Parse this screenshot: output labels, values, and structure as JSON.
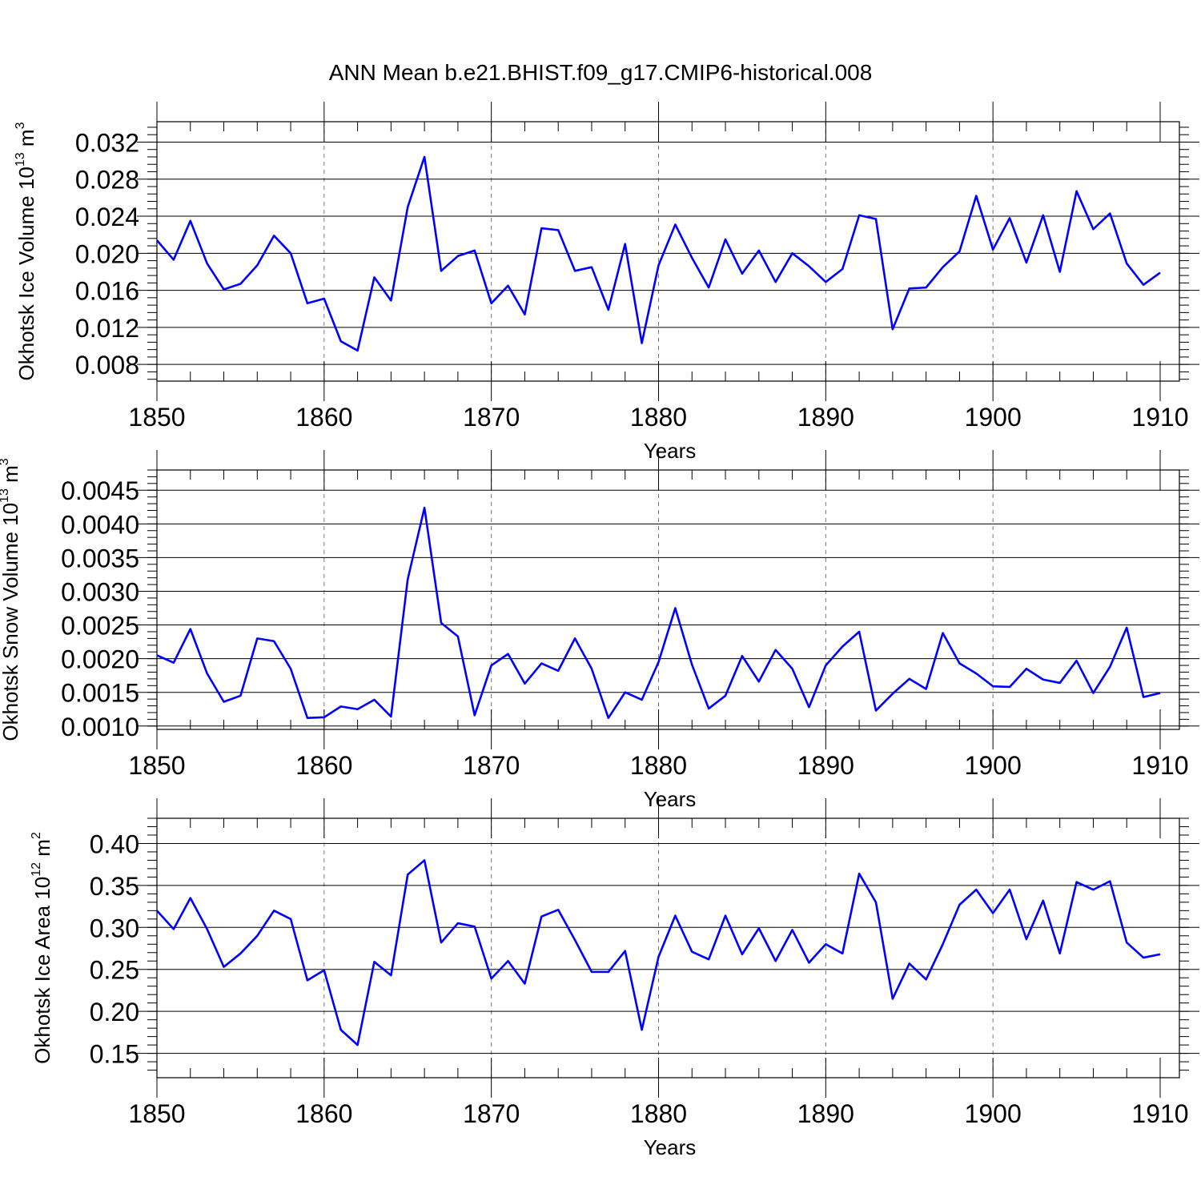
{
  "figure_title": "ANN Mean b.e21.BHIST.f09_g17.CMIP6-historical.008",
  "line_color": "#0000ff",
  "chart_data": [
    {
      "type": "line",
      "ylabel_text": "Okhotsk Ice Volume 10",
      "ylabel_exp": "13",
      "ylabel_unit": " m",
      "ylabel_unit_exp": "3",
      "xlabel": "Years",
      "xlim": [
        1850,
        1910
      ],
      "ylim": [
        0.0062,
        0.0342
      ],
      "xticks": [
        1850,
        1860,
        1870,
        1880,
        1890,
        1900,
        1910
      ],
      "yticks": [
        0.008,
        0.012,
        0.016,
        0.02,
        0.024,
        0.028,
        0.032
      ],
      "ytick_labels": [
        "0.008",
        "0.012",
        "0.016",
        "0.020",
        "0.024",
        "0.028",
        "0.032"
      ],
      "xtick_labels": [
        "1850",
        "1860",
        "1870",
        "1880",
        "1890",
        "1900",
        "1910"
      ],
      "ymajor_step": 0.004,
      "yminor_step": 0.0008,
      "grid": "vertical dashed at major x ticks",
      "x_start": 1850,
      "values": [
        0.0214,
        0.0193,
        0.0235,
        0.0189,
        0.0161,
        0.0167,
        0.0187,
        0.0219,
        0.02,
        0.0146,
        0.0151,
        0.0105,
        0.0095,
        0.0174,
        0.0149,
        0.025,
        0.0304,
        0.0181,
        0.0197,
        0.0203,
        0.0146,
        0.0165,
        0.0134,
        0.0227,
        0.0225,
        0.0181,
        0.0185,
        0.0139,
        0.021,
        0.0103,
        0.0187,
        0.0231,
        0.0195,
        0.0163,
        0.0215,
        0.0178,
        0.0203,
        0.0169,
        0.02,
        0.0186,
        0.0169,
        0.0183,
        0.0241,
        0.0237,
        0.0118,
        0.0162,
        0.0163,
        0.0185,
        0.0202,
        0.0262,
        0.0204,
        0.0238,
        0.019,
        0.0241,
        0.018,
        0.0267,
        0.0226,
        0.0243,
        0.0189,
        0.0166,
        0.0179
      ]
    },
    {
      "type": "line",
      "ylabel_text": "Okhotsk Snow Volume 10",
      "ylabel_exp": "13",
      "ylabel_unit": " m",
      "ylabel_unit_exp": "3",
      "xlabel": "Years",
      "xlim": [
        1850,
        1910
      ],
      "ylim": [
        0.00095,
        0.0048
      ],
      "xticks": [
        1850,
        1860,
        1870,
        1880,
        1890,
        1900,
        1910
      ],
      "yticks": [
        0.001,
        0.0015,
        0.002,
        0.0025,
        0.003,
        0.0035,
        0.004,
        0.0045
      ],
      "ytick_labels": [
        "0.0010",
        "0.0015",
        "0.0020",
        "0.0025",
        "0.0030",
        "0.0035",
        "0.0040",
        "0.0045"
      ],
      "xtick_labels": [
        "1850",
        "1860",
        "1870",
        "1880",
        "1890",
        "1900",
        "1910"
      ],
      "ymajor_step": 0.0005,
      "yminor_step": 0.0001,
      "grid": "vertical dashed at major x ticks",
      "x_start": 1850,
      "values": [
        0.00205,
        0.00194,
        0.00244,
        0.00178,
        0.00136,
        0.00145,
        0.0023,
        0.00226,
        0.00185,
        0.00112,
        0.00113,
        0.00129,
        0.00125,
        0.00139,
        0.00114,
        0.00318,
        0.00424,
        0.00253,
        0.00233,
        0.00116,
        0.0019,
        0.00207,
        0.00163,
        0.00193,
        0.00182,
        0.0023,
        0.00185,
        0.00112,
        0.0015,
        0.00139,
        0.00195,
        0.00275,
        0.00191,
        0.00126,
        0.00145,
        0.00204,
        0.00166,
        0.00213,
        0.00185,
        0.00128,
        0.0019,
        0.00218,
        0.0024,
        0.00123,
        0.00148,
        0.0017,
        0.00155,
        0.00238,
        0.00193,
        0.00178,
        0.00159,
        0.00158,
        0.00185,
        0.00169,
        0.00164,
        0.00197,
        0.00149,
        0.00188,
        0.00246,
        0.00143,
        0.00149
      ]
    },
    {
      "type": "line",
      "ylabel_text": "Okhotsk Ice Area 10",
      "ylabel_exp": "12",
      "ylabel_unit": " m",
      "ylabel_unit_exp": "2",
      "xlabel": "Years",
      "xlim": [
        1850,
        1910
      ],
      "ylim": [
        0.121,
        0.43
      ],
      "xticks": [
        1850,
        1860,
        1870,
        1880,
        1890,
        1900,
        1910
      ],
      "yticks": [
        0.15,
        0.2,
        0.25,
        0.3,
        0.35,
        0.4
      ],
      "ytick_labels": [
        "0.15",
        "0.20",
        "0.25",
        "0.30",
        "0.35",
        "0.40"
      ],
      "xtick_labels": [
        "1850",
        "1860",
        "1870",
        "1880",
        "1890",
        "1900",
        "1910"
      ],
      "ymajor_step": 0.05,
      "yminor_step": 0.01,
      "grid": "vertical dashed at major x ticks",
      "x_start": 1850,
      "values": [
        0.32,
        0.298,
        0.335,
        0.298,
        0.253,
        0.269,
        0.29,
        0.32,
        0.31,
        0.237,
        0.249,
        0.178,
        0.16,
        0.259,
        0.243,
        0.363,
        0.38,
        0.282,
        0.305,
        0.301,
        0.239,
        0.26,
        0.233,
        0.313,
        0.321,
        0.285,
        0.247,
        0.247,
        0.272,
        0.178,
        0.265,
        0.314,
        0.271,
        0.262,
        0.314,
        0.268,
        0.299,
        0.26,
        0.297,
        0.258,
        0.28,
        0.269,
        0.364,
        0.33,
        0.215,
        0.257,
        0.238,
        0.28,
        0.327,
        0.345,
        0.317,
        0.345,
        0.286,
        0.332,
        0.269,
        0.354,
        0.345,
        0.355,
        0.282,
        0.264,
        0.268
      ]
    }
  ]
}
